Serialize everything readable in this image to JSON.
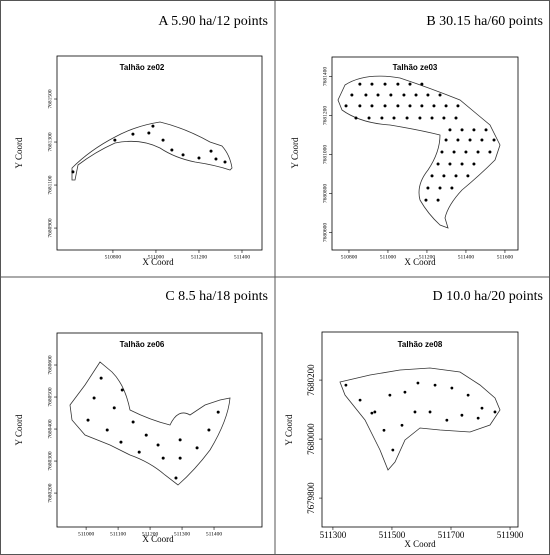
{
  "chart_data": [
    {
      "type": "scatter",
      "panel_label": "A 5.90 ha/12 points",
      "title": "Talhão ze02",
      "x_label": "X Coord",
      "y_label": "Y Coord",
      "color": "#000000",
      "x": [
        510809,
        510893,
        510967,
        510986,
        511033,
        511074,
        511126,
        511200,
        511279,
        511256,
        511321,
        510614
      ],
      "y": [
        7681309,
        7681337,
        7681342,
        7681374,
        7681309,
        7681263,
        7681240,
        7681226,
        7681221,
        7681258,
        7681207,
        7681161
      ],
      "xlim": [
        510540,
        511493
      ],
      "ylim": [
        7680798,
        7681700
      ],
      "xticks": [
        510800,
        511000,
        511200,
        511400
      ],
      "yticks": [
        7680900,
        7681100,
        7681300,
        7681500
      ]
    },
    {
      "type": "scatter",
      "panel_label": "B 30.15 ha/60 points",
      "title": "Talhão ze03",
      "x_label": "X Coord",
      "y_label": "Y Coord",
      "color": "#000000",
      "x": [
        510856,
        510918,
        510985,
        511051,
        511113,
        511174,
        510815,
        510887,
        510949,
        511015,
        511082,
        511144,
        511205,
        511267,
        510785,
        510856,
        510918,
        510985,
        511051,
        511113,
        511174,
        511236,
        511298,
        511359,
        510836,
        510903,
        510969,
        511031,
        511098,
        511164,
        511226,
        511287,
        511349,
        511318,
        511380,
        511441,
        511503,
        511298,
        511359,
        511421,
        511482,
        511544,
        511277,
        511339,
        511400,
        511462,
        511523,
        511257,
        511318,
        511380,
        511441,
        511226,
        511287,
        511349,
        511410,
        511205,
        511267,
        511328,
        511195,
        511257
      ],
      "y": [
        7681361,
        7681361,
        7681361,
        7681361,
        7681361,
        7681361,
        7681305,
        7681305,
        7681305,
        7681305,
        7681305,
        7681305,
        7681305,
        7681305,
        7681249,
        7681249,
        7681249,
        7681249,
        7681249,
        7681249,
        7681249,
        7681249,
        7681249,
        7681249,
        7681187,
        7681187,
        7681187,
        7681187,
        7681187,
        7681187,
        7681187,
        7681187,
        7681187,
        7681126,
        7681126,
        7681126,
        7681126,
        7681074,
        7681074,
        7681074,
        7681074,
        7681074,
        7681013,
        7681013,
        7681013,
        7681013,
        7681013,
        7680951,
        7680951,
        7680951,
        7680951,
        7680890,
        7680890,
        7680890,
        7680890,
        7680828,
        7680828,
        7680828,
        7680766,
        7680766
      ],
      "xlim": [
        510713,
        511667
      ],
      "ylim": [
        7680510,
        7681500
      ],
      "xticks": [
        510800,
        511000,
        511200,
        511400,
        511600
      ],
      "yticks": [
        7680600,
        7680800,
        7681000,
        7681200,
        7681400
      ]
    },
    {
      "type": "scatter",
      "panel_label": "C 8.5 ha/18 points",
      "title": "Talhão ze06",
      "x_label": "X Coord",
      "y_label": "Y Coord",
      "color": "#000000",
      "x": [
        511047,
        511025,
        511088,
        511006,
        511066,
        511113,
        511109,
        511147,
        511188,
        511166,
        511225,
        511241,
        511294,
        511294,
        511347,
        511384,
        511413,
        511281
      ],
      "y": [
        7680559,
        7680497,
        7680466,
        7680428,
        7680397,
        7680522,
        7680359,
        7680422,
        7680381,
        7680328,
        7680350,
        7680309,
        7680366,
        7680309,
        7680341,
        7680397,
        7680453,
        7680247
      ],
      "xlim": [
        510909,
        511550
      ],
      "ylim": [
        7680094,
        7680700
      ],
      "xticks": [
        511000,
        511100,
        511200,
        511300,
        511400
      ],
      "yticks": [
        7680200,
        7680300,
        7680400,
        7680500,
        7680600
      ]
    },
    {
      "type": "scatter",
      "panel_label": "D 10.0 ha/20 points",
      "title": "Talhão ze08",
      "x_label": "X Coord",
      "y_label": "Y Coord",
      "color": "#000000",
      "x": [
        511344,
        511392,
        511442,
        511493,
        511544,
        511588,
        511646,
        511703,
        511758,
        511805,
        511849,
        511792,
        511737,
        511686,
        511629,
        511578,
        511534,
        511473,
        511432,
        511503
      ],
      "y": [
        7680183,
        7680132,
        7680092,
        7680149,
        7680159,
        7680190,
        7680183,
        7680173,
        7680149,
        7680105,
        7680092,
        7680071,
        7680081,
        7680064,
        7680092,
        7680092,
        7680047,
        7680030,
        7680088,
        7679963
      ],
      "xlim": [
        511263,
        511927
      ],
      "ylim": [
        7679702,
        7680363
      ],
      "xticks": [
        511300,
        511500,
        511700,
        511900
      ],
      "yticks": [
        7679800,
        7680000,
        7680200
      ]
    }
  ]
}
